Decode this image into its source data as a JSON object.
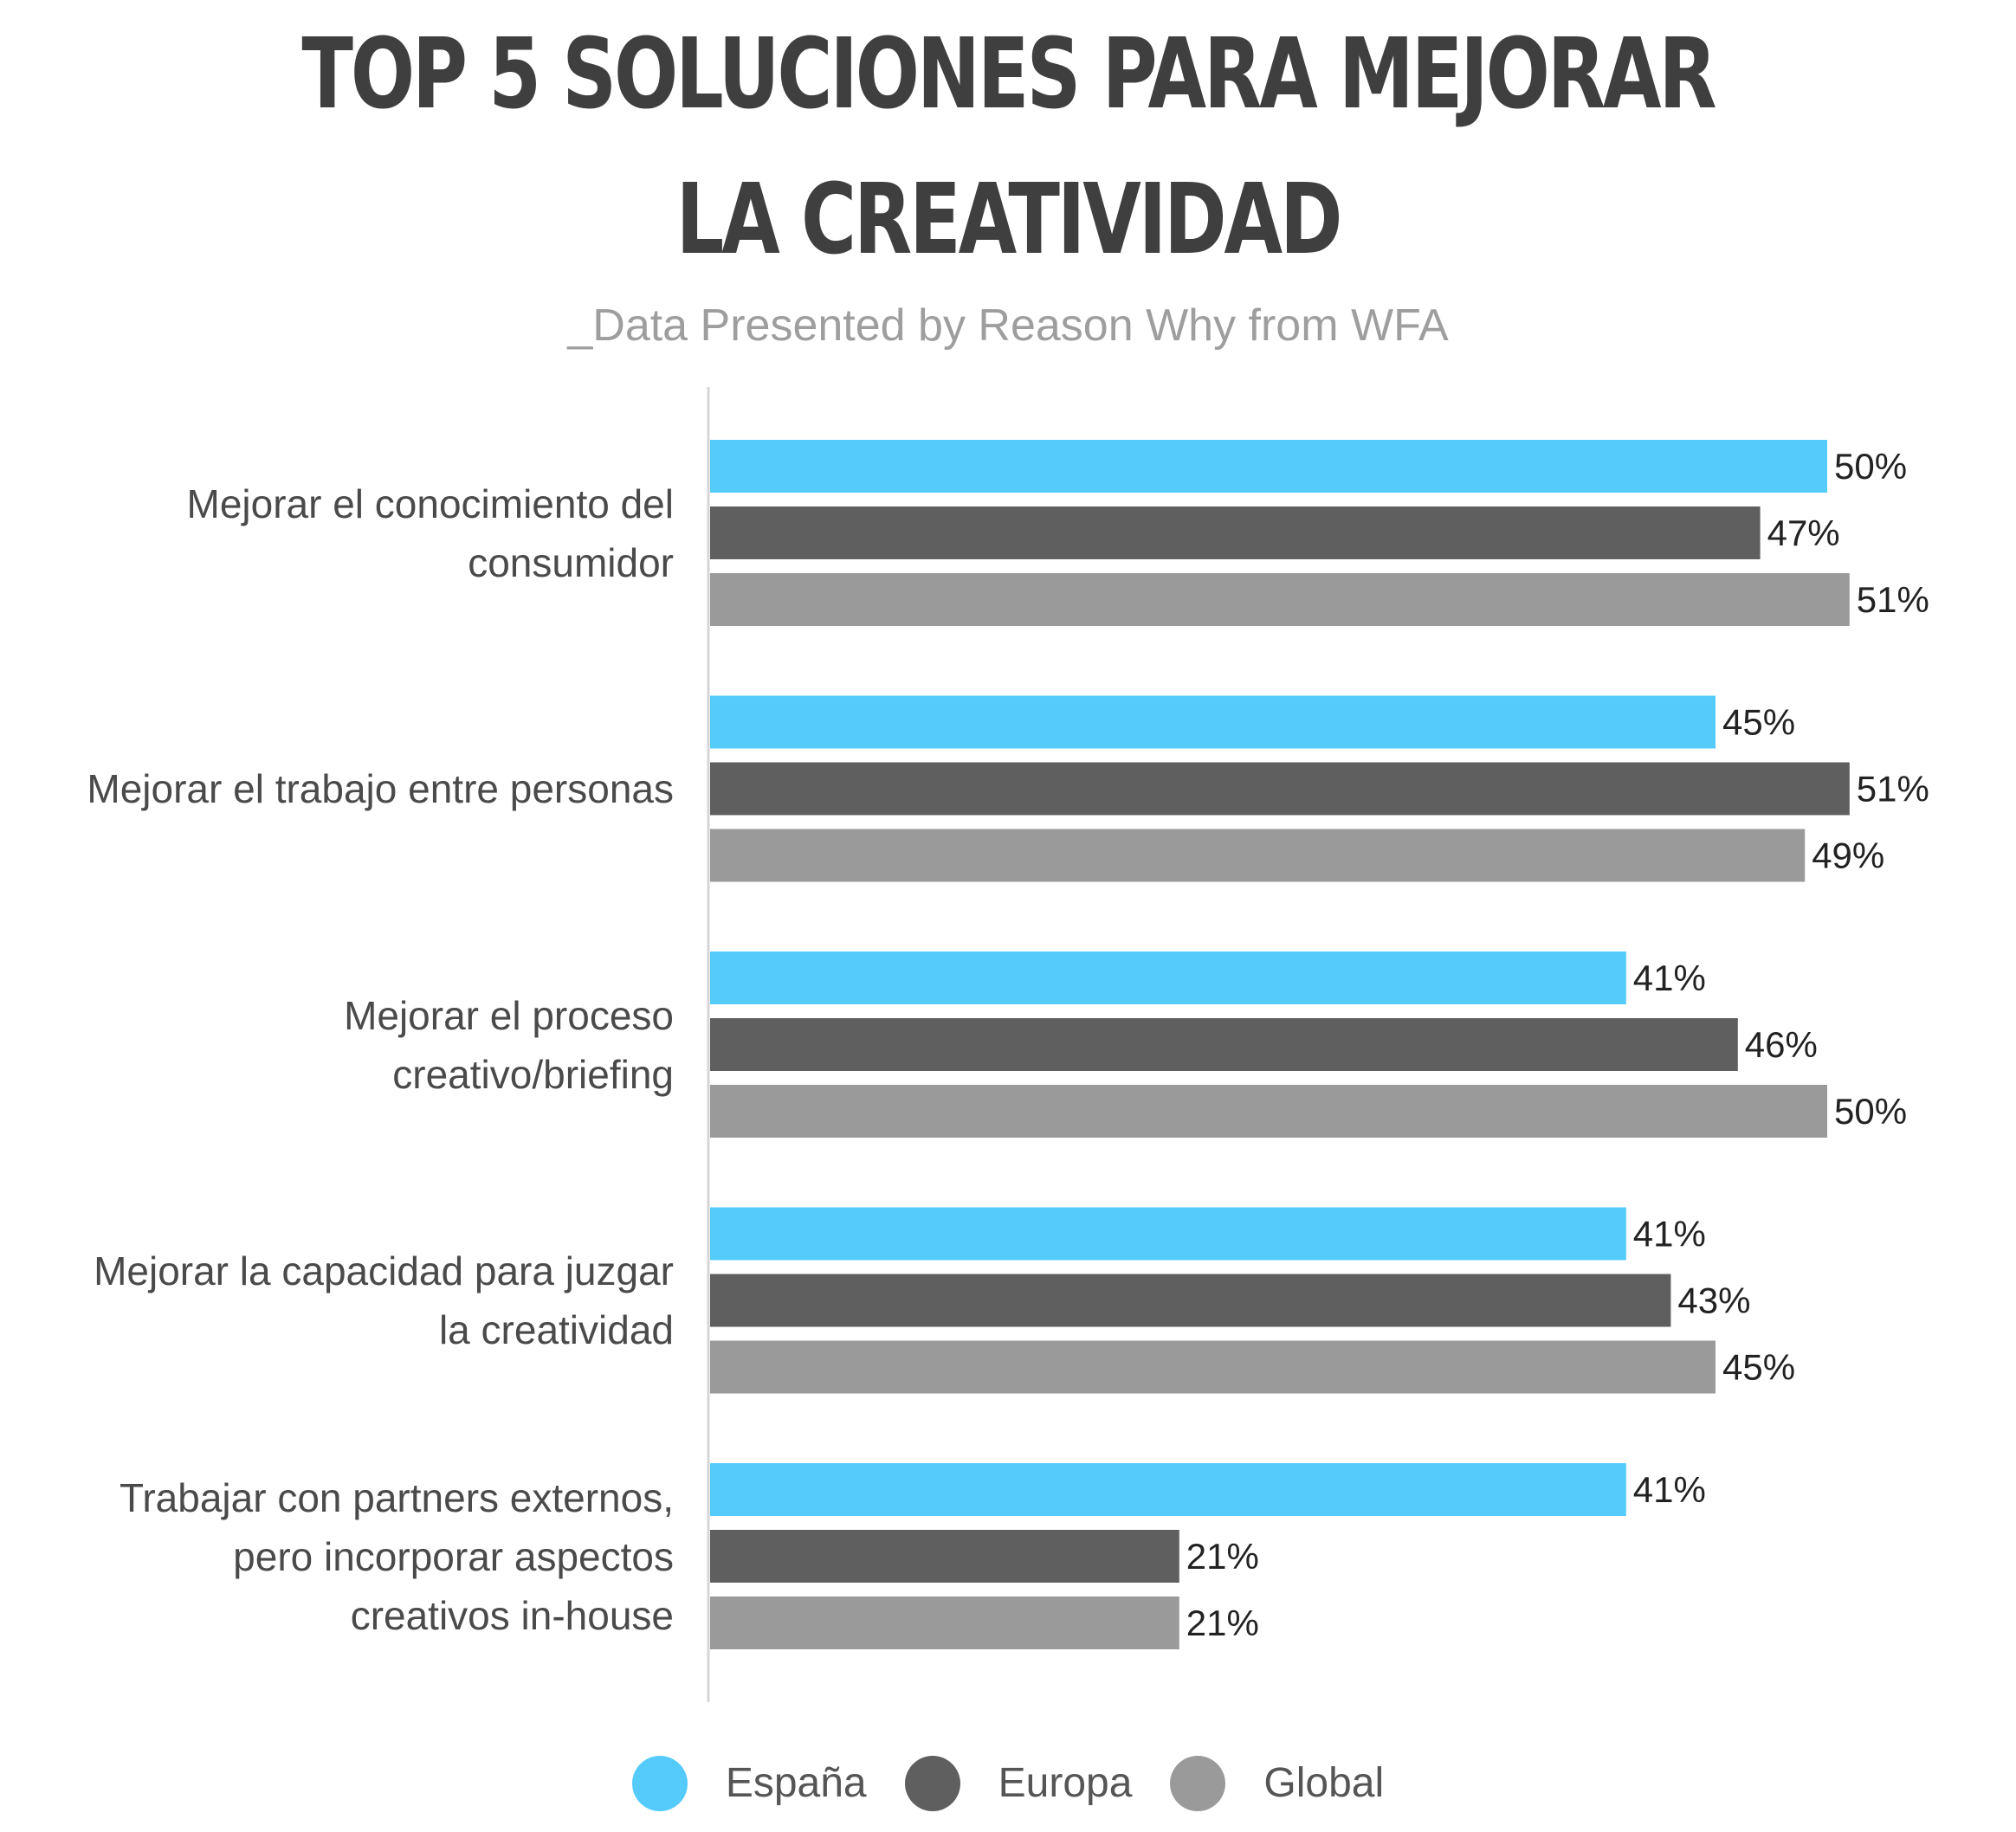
{
  "title_line_1": "TOP 5 SOLUCIONES PARA MEJORAR",
  "title_line_2": "LA CREATIVIDAD",
  "subtitle": "_Data Presented by Reason Why from WFA",
  "chart_data": {
    "type": "bar",
    "orientation": "horizontal",
    "title": "TOP 5 SOLUCIONES PARA MEJORAR LA CREATIVIDAD",
    "subtitle": "_Data Presented by Reason Why from WFA",
    "xlabel": "",
    "ylabel": "",
    "value_suffix": "%",
    "xlim": [
      0,
      100
    ],
    "grid": false,
    "legend_position": "bottom",
    "categories": [
      "Mejorar el conocimiento del\nconsumidor",
      "Mejorar el trabajo entre personas",
      "Mejorar el proceso\ncreativo/briefing",
      "Mejorar la capacidad para juzgar\nla creatividad",
      "Trabajar con partners externos,\npero incorporar aspectos\ncreativos in-house"
    ],
    "series": [
      {
        "name": "España",
        "color": "#55cbfc",
        "values": [
          50,
          45,
          41,
          41,
          41
        ]
      },
      {
        "name": "Europa",
        "color": "#5f5f5f",
        "values": [
          47,
          51,
          46,
          43,
          21
        ]
      },
      {
        "name": "Global",
        "color": "#9a9a9a",
        "values": [
          51,
          49,
          50,
          45,
          21
        ]
      }
    ]
  }
}
